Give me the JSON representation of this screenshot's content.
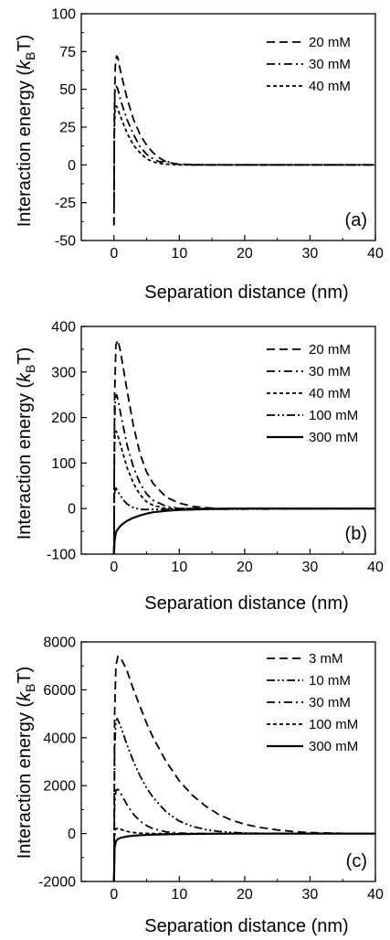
{
  "chart_data": [
    {
      "type": "line",
      "panel_label": "(a)",
      "xlabel": "Separation distance (nm)",
      "ylabel_main": "Interaction energy (",
      "ylabel_var": "k",
      "ylabel_sub": "B",
      "ylabel_end": "T)",
      "xlim": [
        -5,
        40
      ],
      "ylim": [
        -50,
        100
      ],
      "xticks": [
        0,
        10,
        20,
        30,
        40
      ],
      "yticks": [
        -50,
        -25,
        0,
        25,
        50,
        75,
        100
      ],
      "legend_position": "top-right",
      "grid": false,
      "series": [
        {
          "name": "20 mM",
          "dash": "dash",
          "x": [
            0,
            0.08,
            0.2,
            0.4,
            0.6,
            1,
            2,
            3,
            4,
            5,
            6,
            7,
            8,
            9,
            10,
            12,
            14,
            40
          ],
          "y": [
            -40,
            40,
            65,
            72,
            71,
            62,
            44,
            30,
            20,
            13,
            8,
            4.5,
            2,
            1,
            0.5,
            0.2,
            0,
            0
          ]
        },
        {
          "name": "30 mM",
          "dash": "dashdot",
          "x": [
            0,
            0.05,
            0.15,
            0.35,
            0.6,
            1,
            2,
            3,
            4,
            5,
            6,
            7,
            8,
            9,
            10,
            12,
            40
          ],
          "y": [
            -40,
            30,
            48,
            52,
            50,
            43,
            30,
            20,
            12,
            7,
            4,
            2,
            2.5,
            1,
            0.3,
            0,
            0
          ]
        },
        {
          "name": "40 mM",
          "dash": "short",
          "x": [
            0,
            0.05,
            0.15,
            0.3,
            0.5,
            1,
            2,
            3,
            4,
            5,
            6,
            7,
            8,
            10,
            40
          ],
          "y": [
            -25,
            20,
            36,
            39,
            38,
            32,
            21,
            13,
            8,
            4,
            2,
            1,
            0.5,
            0,
            0
          ]
        }
      ]
    },
    {
      "type": "line",
      "panel_label": "(b)",
      "xlabel": "Separation distance (nm)",
      "ylabel_main": "Interaction energy (",
      "ylabel_var": "k",
      "ylabel_sub": "B",
      "ylabel_end": "T)",
      "xlim": [
        -5,
        40
      ],
      "ylim": [
        -100,
        400
      ],
      "xticks": [
        0,
        10,
        20,
        30,
        40
      ],
      "yticks": [
        -100,
        0,
        100,
        200,
        300,
        400
      ],
      "legend_position": "top-right",
      "grid": false,
      "series": [
        {
          "name": "20 mM",
          "dash": "dash",
          "x": [
            0,
            0.1,
            0.3,
            0.6,
            1,
            2,
            3,
            4,
            5,
            6,
            8,
            10,
            12,
            14,
            16,
            40
          ],
          "y": [
            -100,
            250,
            360,
            370,
            345,
            260,
            180,
            120,
            80,
            55,
            25,
            12,
            5,
            2,
            0,
            0
          ]
        },
        {
          "name": "30 mM",
          "dash": "dashdot",
          "x": [
            0,
            0.08,
            0.2,
            0.4,
            0.7,
            1,
            2,
            3,
            4,
            5,
            6,
            8,
            10,
            40
          ],
          "y": [
            -100,
            180,
            240,
            250,
            235,
            210,
            140,
            90,
            55,
            32,
            18,
            5,
            0,
            0
          ]
        },
        {
          "name": "40 mM",
          "dash": "short",
          "x": [
            0,
            0.06,
            0.15,
            0.35,
            0.6,
            1,
            2,
            3,
            4,
            5,
            6,
            8,
            40
          ],
          "y": [
            -100,
            120,
            160,
            170,
            160,
            140,
            90,
            55,
            30,
            15,
            7,
            0,
            0
          ]
        },
        {
          "name": "100 mM",
          "dash": "dashdotdot",
          "x": [
            0,
            0.05,
            0.15,
            0.3,
            0.5,
            1,
            1.5,
            2,
            3,
            4,
            6,
            40
          ],
          "y": [
            -100,
            20,
            40,
            45,
            40,
            28,
            18,
            10,
            2,
            -2,
            -2,
            0
          ]
        },
        {
          "name": "300 mM",
          "dash": "solid",
          "x": [
            0,
            0.1,
            0.3,
            0.6,
            1,
            1.5,
            2,
            3,
            4,
            5,
            6,
            8,
            10,
            15,
            20,
            40
          ],
          "y": [
            -100,
            -70,
            -52,
            -45,
            -38,
            -32,
            -27,
            -20,
            -15,
            -11,
            -8,
            -5,
            -3,
            -1,
            0,
            0
          ]
        }
      ]
    },
    {
      "type": "line",
      "panel_label": "(c)",
      "xlabel": "Separation distance (nm)",
      "ylabel_main": "Interaction energy (",
      "ylabel_var": "k",
      "ylabel_sub": "B",
      "ylabel_end": "T)",
      "xlim": [
        -5,
        40
      ],
      "ylim": [
        -2000,
        8000
      ],
      "xticks": [
        0,
        10,
        20,
        30,
        40
      ],
      "yticks": [
        -2000,
        0,
        2000,
        4000,
        6000,
        8000
      ],
      "legend_position": "top-right",
      "grid": false,
      "series": [
        {
          "name": "3 mM",
          "dash": "dash",
          "x": [
            0,
            0.1,
            0.3,
            0.6,
            1,
            2,
            3,
            4,
            5,
            6,
            8,
            10,
            12,
            14,
            16,
            18,
            20,
            22,
            25,
            28,
            30,
            35,
            40
          ],
          "y": [
            -2000,
            5000,
            7000,
            7400,
            7350,
            6800,
            6000,
            5300,
            4600,
            4000,
            3000,
            2200,
            1600,
            1150,
            800,
            560,
            390,
            270,
            150,
            70,
            40,
            10,
            0
          ]
        },
        {
          "name": "10 mM",
          "dash": "dashdotdot",
          "x": [
            0,
            0.1,
            0.3,
            0.5,
            1,
            2,
            3,
            4,
            5,
            6,
            8,
            10,
            12,
            14,
            16,
            18,
            20,
            25,
            40
          ],
          "y": [
            -2000,
            3500,
            4700,
            4800,
            4500,
            3700,
            3000,
            2400,
            1900,
            1500,
            900,
            520,
            300,
            170,
            90,
            50,
            20,
            0,
            0
          ]
        },
        {
          "name": "30 mM",
          "dash": "dashdot",
          "x": [
            0,
            0.1,
            0.3,
            0.6,
            1,
            2,
            3,
            4,
            5,
            6,
            8,
            10,
            12,
            15,
            40
          ],
          "y": [
            -2000,
            1300,
            1800,
            1850,
            1700,
            1200,
            800,
            520,
            330,
            200,
            70,
            20,
            0,
            0,
            0
          ]
        },
        {
          "name": "100 mM",
          "dash": "short",
          "x": [
            0,
            0.05,
            0.15,
            0.3,
            0.6,
            1,
            1.5,
            2,
            3,
            4,
            6,
            8,
            40
          ],
          "y": [
            -2000,
            -400,
            100,
            200,
            220,
            180,
            130,
            90,
            40,
            15,
            0,
            0,
            0
          ]
        },
        {
          "name": "300 mM",
          "dash": "solid",
          "x": [
            0,
            0.1,
            0.3,
            0.6,
            1,
            2,
            3,
            4,
            5,
            6,
            8,
            10,
            15,
            20,
            40
          ],
          "y": [
            -2000,
            -600,
            -320,
            -230,
            -180,
            -120,
            -90,
            -70,
            -55,
            -45,
            -30,
            -20,
            -8,
            0,
            0
          ]
        }
      ]
    }
  ]
}
